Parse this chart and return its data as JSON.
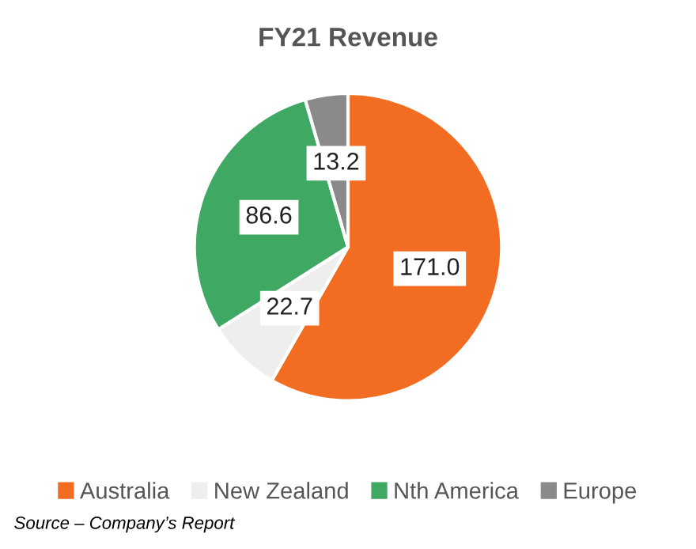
{
  "chart_data": {
    "type": "pie",
    "title": "FY21 Revenue",
    "categories": [
      "Australia",
      "New Zealand",
      "Nth America",
      "Europe"
    ],
    "values": [
      171.0,
      22.7,
      86.6,
      13.2
    ],
    "colors": [
      "#f26d21",
      "#eeeeee",
      "#3fa862",
      "#8a8a8a"
    ],
    "value_labels": [
      "171.0",
      "22.7",
      "86.6",
      "13.2"
    ],
    "legend": "bottom",
    "annotations": [
      "Source – Company’s Report"
    ]
  }
}
